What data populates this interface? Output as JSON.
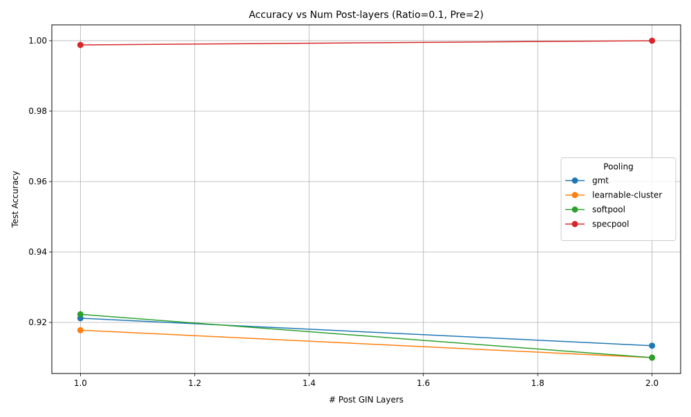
{
  "chart_data": {
    "type": "line",
    "title": "Accuracy vs Num Post-layers (Ratio=0.1, Pre=2)",
    "xlabel": "# Post GIN Layers",
    "ylabel": "Test Accuracy",
    "xlim": [
      0.95,
      2.05
    ],
    "ylim": [
      0.9055,
      1.0045
    ],
    "xticks": [
      1.0,
      1.2,
      1.4,
      1.6,
      1.8,
      2.0
    ],
    "xtick_labels": [
      "1.0",
      "1.2",
      "1.4",
      "1.6",
      "1.8",
      "2.0"
    ],
    "yticks": [
      0.92,
      0.94,
      0.96,
      0.98,
      1.0
    ],
    "ytick_labels": [
      "0.92",
      "0.94",
      "0.96",
      "0.98",
      "1.00"
    ],
    "grid": true,
    "legend": {
      "title": "Pooling",
      "position": "center-right"
    },
    "x": [
      1,
      2
    ],
    "series": [
      {
        "name": "gmt",
        "color": "#1f77b4",
        "values": [
          0.9212,
          0.9134
        ]
      },
      {
        "name": "learnable-cluster",
        "color": "#ff7f0e",
        "values": [
          0.9178,
          0.91
        ]
      },
      {
        "name": "softpool",
        "color": "#2ca02c",
        "values": [
          0.9223,
          0.91
        ]
      },
      {
        "name": "specpool",
        "color": "#d62728",
        "values": [
          0.9988,
          1.0
        ]
      }
    ]
  }
}
